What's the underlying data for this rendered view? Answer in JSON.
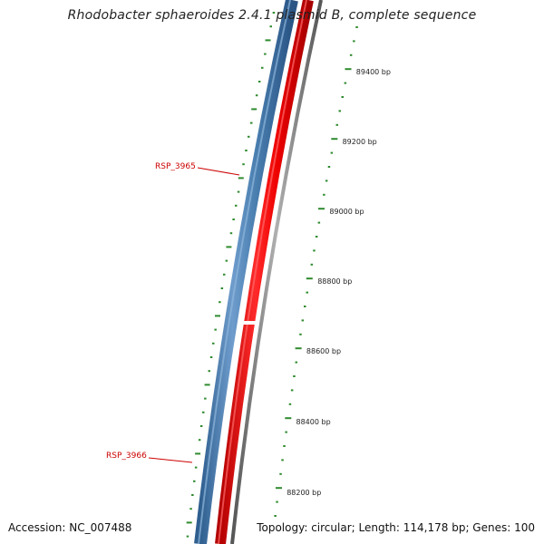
{
  "title": "Rhodobacter sphaeroides 2.4.1 plasmid B, complete sequence",
  "footer": {
    "accession_label": "Accession:",
    "accession": "NC_007488",
    "topology_label": "Topology:",
    "topology": "circular",
    "length_label": "Length:",
    "length": "114,178 bp",
    "genes_label": "Genes:",
    "genes": "100"
  },
  "scale_ticks": [
    {
      "bp": 89400,
      "label": "89400 bp"
    },
    {
      "bp": 89200,
      "label": "89200 bp"
    },
    {
      "bp": 89000,
      "label": "89000 bp"
    },
    {
      "bp": 88800,
      "label": "88800 bp"
    },
    {
      "bp": 88600,
      "label": "88600 bp"
    },
    {
      "bp": 88400,
      "label": "88400 bp"
    },
    {
      "bp": 88200,
      "label": "88200 bp"
    }
  ],
  "gene_labels": [
    {
      "name": "RSP_3965"
    },
    {
      "name": "RSP_3966"
    }
  ],
  "colors": {
    "forward_track": "#4a7fb0",
    "reverse_track": "#ee0000",
    "backbone": "#8a8a8a",
    "tick": "#2e8b2e",
    "gene_label": "#cc0000"
  }
}
